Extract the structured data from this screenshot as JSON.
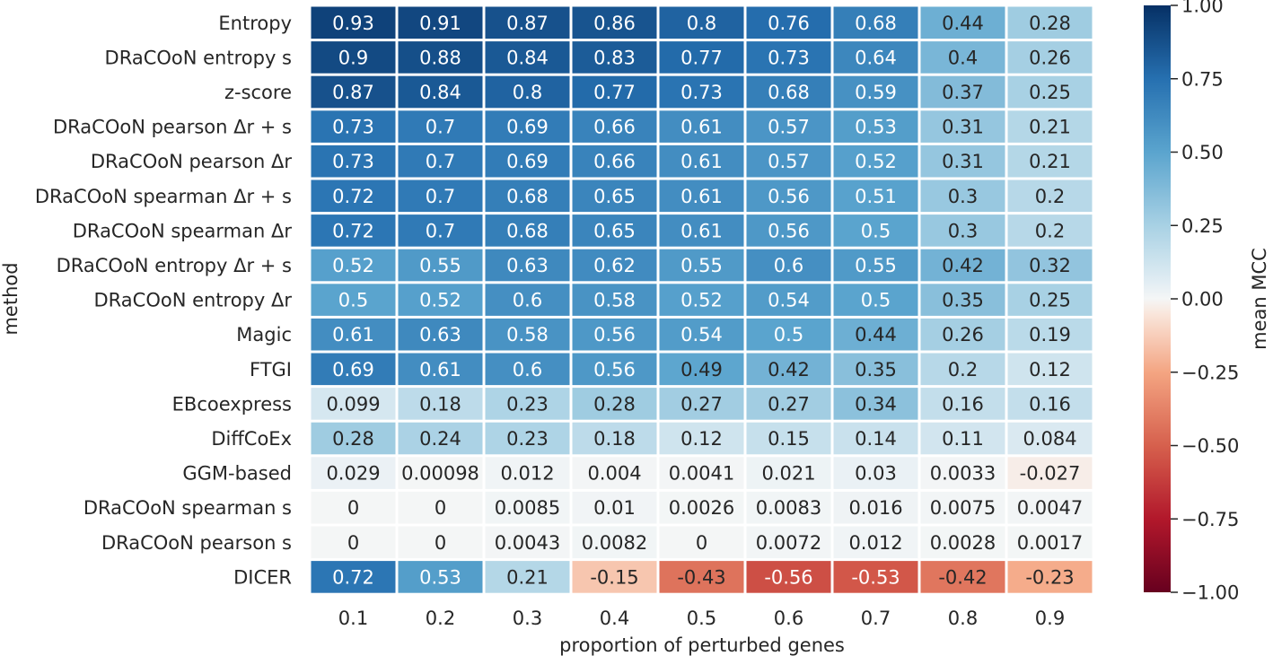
{
  "chart_data": {
    "type": "heatmap",
    "xlabel": "proportion of perturbed genes",
    "ylabel": "method",
    "columns": [
      "0.1",
      "0.2",
      "0.3",
      "0.4",
      "0.5",
      "0.6",
      "0.7",
      "0.8",
      "0.9"
    ],
    "rows": [
      "Entropy",
      "DRaCOoN entropy s",
      "z-score",
      "DRaCOoN pearson Δr + s",
      "DRaCOoN pearson Δr",
      "DRaCOoN spearman Δr + s",
      "DRaCOoN spearman Δr",
      "DRaCOoN entropy Δr + s",
      "DRaCOoN entropy Δr",
      "Magic",
      "FTGI",
      "EBcoexpress",
      "DiffCoEx",
      "GGM-based",
      "DRaCOoN spearman s",
      "DRaCOoN pearson s",
      "DICER"
    ],
    "values": [
      [
        0.93,
        0.91,
        0.87,
        0.86,
        0.8,
        0.76,
        0.68,
        0.44,
        0.28
      ],
      [
        0.9,
        0.88,
        0.84,
        0.83,
        0.77,
        0.73,
        0.64,
        0.4,
        0.26
      ],
      [
        0.87,
        0.84,
        0.8,
        0.77,
        0.73,
        0.68,
        0.59,
        0.37,
        0.25
      ],
      [
        0.73,
        0.7,
        0.69,
        0.66,
        0.61,
        0.57,
        0.53,
        0.31,
        0.21
      ],
      [
        0.73,
        0.7,
        0.69,
        0.66,
        0.61,
        0.57,
        0.52,
        0.31,
        0.21
      ],
      [
        0.72,
        0.7,
        0.68,
        0.65,
        0.61,
        0.56,
        0.51,
        0.3,
        0.2
      ],
      [
        0.72,
        0.7,
        0.68,
        0.65,
        0.61,
        0.56,
        0.5,
        0.3,
        0.2
      ],
      [
        0.52,
        0.55,
        0.63,
        0.62,
        0.55,
        0.6,
        0.55,
        0.42,
        0.32
      ],
      [
        0.5,
        0.52,
        0.6,
        0.58,
        0.52,
        0.54,
        0.5,
        0.35,
        0.25
      ],
      [
        0.61,
        0.63,
        0.58,
        0.56,
        0.54,
        0.5,
        0.44,
        0.26,
        0.19
      ],
      [
        0.69,
        0.61,
        0.6,
        0.56,
        0.49,
        0.42,
        0.35,
        0.2,
        0.12
      ],
      [
        0.099,
        0.18,
        0.23,
        0.28,
        0.27,
        0.27,
        0.34,
        0.16,
        0.16
      ],
      [
        0.28,
        0.24,
        0.23,
        0.18,
        0.12,
        0.15,
        0.14,
        0.11,
        0.084
      ],
      [
        0.029,
        0.00098,
        0.012,
        0.004,
        0.0041,
        0.021,
        0.03,
        0.0033,
        -0.027
      ],
      [
        0,
        0,
        0.0085,
        0.01,
        0.0026,
        0.0083,
        0.016,
        0.0075,
        0.0047
      ],
      [
        0,
        0,
        0.0043,
        0.0082,
        0,
        0.0072,
        0.012,
        0.0028,
        0.0017
      ],
      [
        0.72,
        0.53,
        0.21,
        -0.15,
        -0.43,
        -0.56,
        -0.53,
        -0.42,
        -0.23
      ]
    ],
    "value_labels": [
      [
        "0.93",
        "0.91",
        "0.87",
        "0.86",
        "0.8",
        "0.76",
        "0.68",
        "0.44",
        "0.28"
      ],
      [
        "0.9",
        "0.88",
        "0.84",
        "0.83",
        "0.77",
        "0.73",
        "0.64",
        "0.4",
        "0.26"
      ],
      [
        "0.87",
        "0.84",
        "0.8",
        "0.77",
        "0.73",
        "0.68",
        "0.59",
        "0.37",
        "0.25"
      ],
      [
        "0.73",
        "0.7",
        "0.69",
        "0.66",
        "0.61",
        "0.57",
        "0.53",
        "0.31",
        "0.21"
      ],
      [
        "0.73",
        "0.7",
        "0.69",
        "0.66",
        "0.61",
        "0.57",
        "0.52",
        "0.31",
        "0.21"
      ],
      [
        "0.72",
        "0.7",
        "0.68",
        "0.65",
        "0.61",
        "0.56",
        "0.51",
        "0.3",
        "0.2"
      ],
      [
        "0.72",
        "0.7",
        "0.68",
        "0.65",
        "0.61",
        "0.56",
        "0.5",
        "0.3",
        "0.2"
      ],
      [
        "0.52",
        "0.55",
        "0.63",
        "0.62",
        "0.55",
        "0.6",
        "0.55",
        "0.42",
        "0.32"
      ],
      [
        "0.5",
        "0.52",
        "0.6",
        "0.58",
        "0.52",
        "0.54",
        "0.5",
        "0.35",
        "0.25"
      ],
      [
        "0.61",
        "0.63",
        "0.58",
        "0.56",
        "0.54",
        "0.5",
        "0.44",
        "0.26",
        "0.19"
      ],
      [
        "0.69",
        "0.61",
        "0.6",
        "0.56",
        "0.49",
        "0.42",
        "0.35",
        "0.2",
        "0.12"
      ],
      [
        "0.099",
        "0.18",
        "0.23",
        "0.28",
        "0.27",
        "0.27",
        "0.34",
        "0.16",
        "0.16"
      ],
      [
        "0.28",
        "0.24",
        "0.23",
        "0.18",
        "0.12",
        "0.15",
        "0.14",
        "0.11",
        "0.084"
      ],
      [
        "0.029",
        "0.00098",
        "0.012",
        "0.004",
        "0.0041",
        "0.021",
        "0.03",
        "0.0033",
        "-0.027"
      ],
      [
        "0",
        "0",
        "0.0085",
        "0.01",
        "0.0026",
        "0.0083",
        "0.016",
        "0.0075",
        "0.0047"
      ],
      [
        "0",
        "0",
        "0.0043",
        "0.0082",
        "0",
        "0.0072",
        "0.012",
        "0.0028",
        "0.0017"
      ],
      [
        "0.72",
        "0.53",
        "0.21",
        "-0.15",
        "-0.43",
        "-0.56",
        "-0.53",
        "-0.42",
        "-0.23"
      ]
    ],
    "colorbar": {
      "label": "mean MCC",
      "range": [
        -1,
        1
      ],
      "ticks": [
        "1.00",
        "0.75",
        "0.50",
        "0.25",
        "0.00",
        "−0.25",
        "−0.50",
        "−0.75",
        "−1.00"
      ],
      "colormap": "RdBu"
    },
    "grid": false
  }
}
